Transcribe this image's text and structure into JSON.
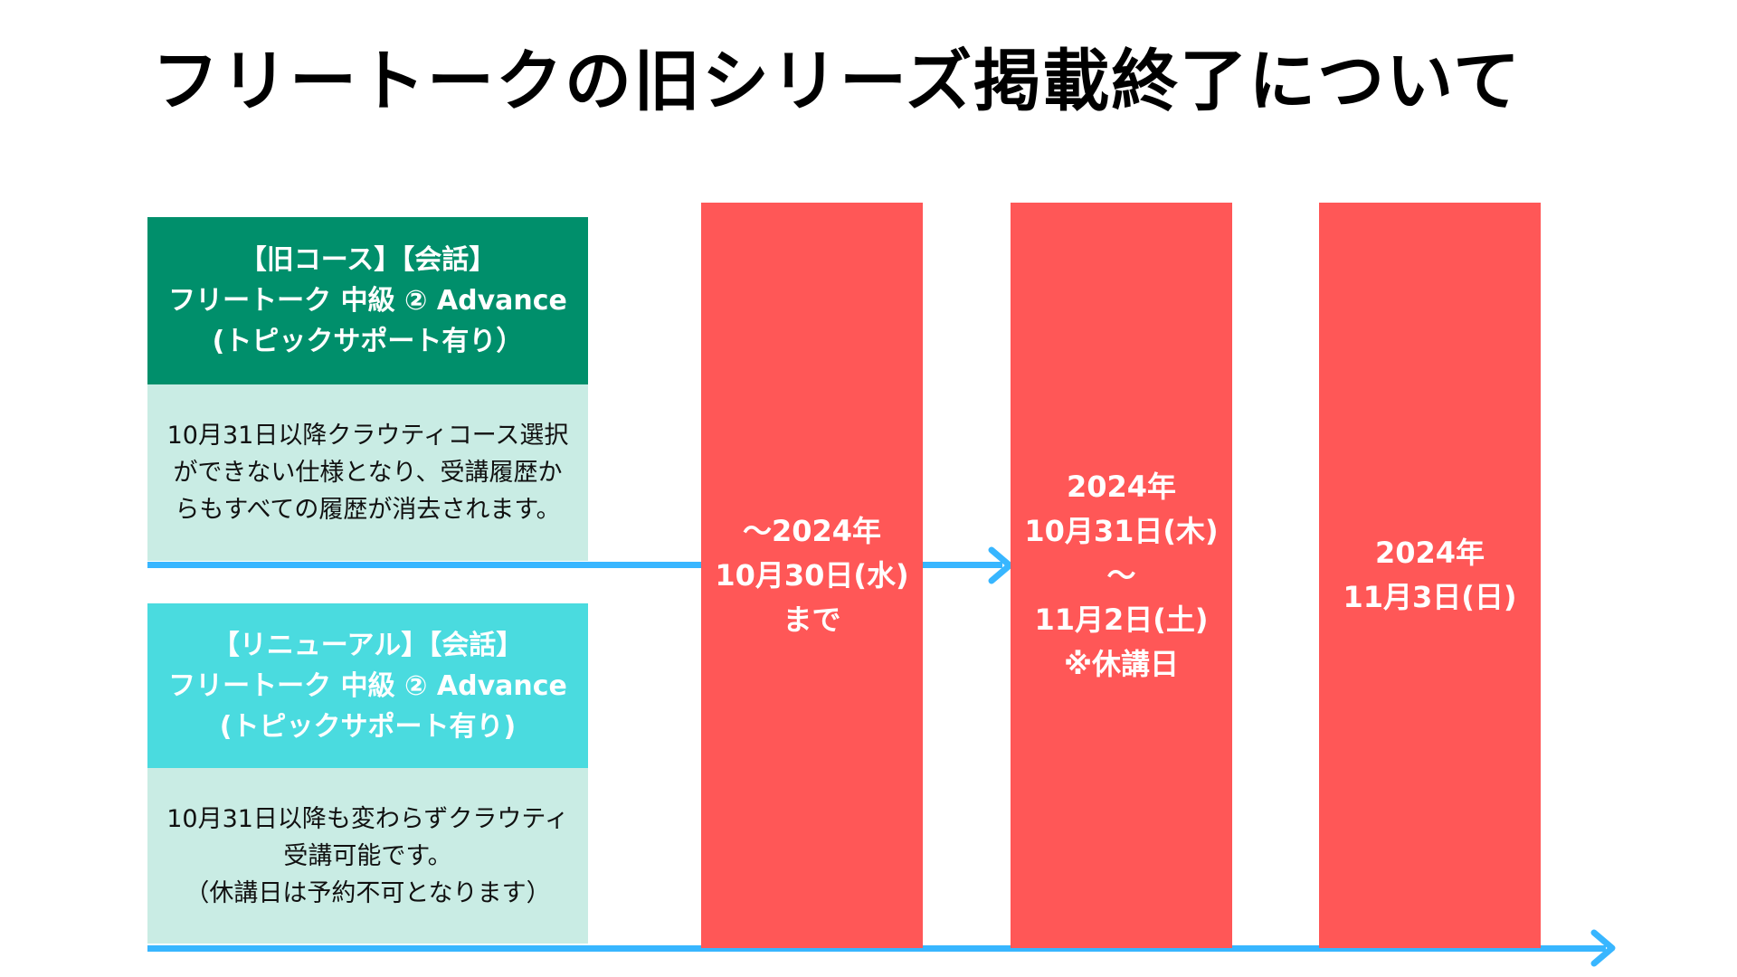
{
  "title": "フリートークの旧シリーズ掲載終了について",
  "old_course": {
    "header": [
      "【旧コース】【会話】",
      "フリートーク 中級 ② Advance",
      "(トピックサポート有り）"
    ],
    "body": [
      "10月31日以降クラウティコース選択",
      "ができない仕様となり、受講履歴か",
      "らもすべての履歴が消去されます。"
    ]
  },
  "new_course": {
    "header": [
      "【リニューアル】【会話】",
      "フリートーク 中級 ② Advance",
      "(トピックサポート有り)"
    ],
    "body": [
      "10月31日以降も変わらずクラウティ",
      "受講可能です。",
      "（休講日は予約不可となります）"
    ]
  },
  "periods": [
    {
      "lines": [
        "〜2024年",
        "10月30日(水)",
        "まで"
      ]
    },
    {
      "lines": [
        "2024年",
        "10月31日(木)",
        "〜",
        "11月2日(土)",
        "※休講日"
      ]
    },
    {
      "lines": [
        "2024年",
        "11月3日(日)"
      ]
    }
  ],
  "colors": {
    "old_header": "#008f6b",
    "new_header": "#4adbdf",
    "body_bg": "#c9ece4",
    "period": "#ff5757",
    "timeline": "#38b6ff"
  }
}
